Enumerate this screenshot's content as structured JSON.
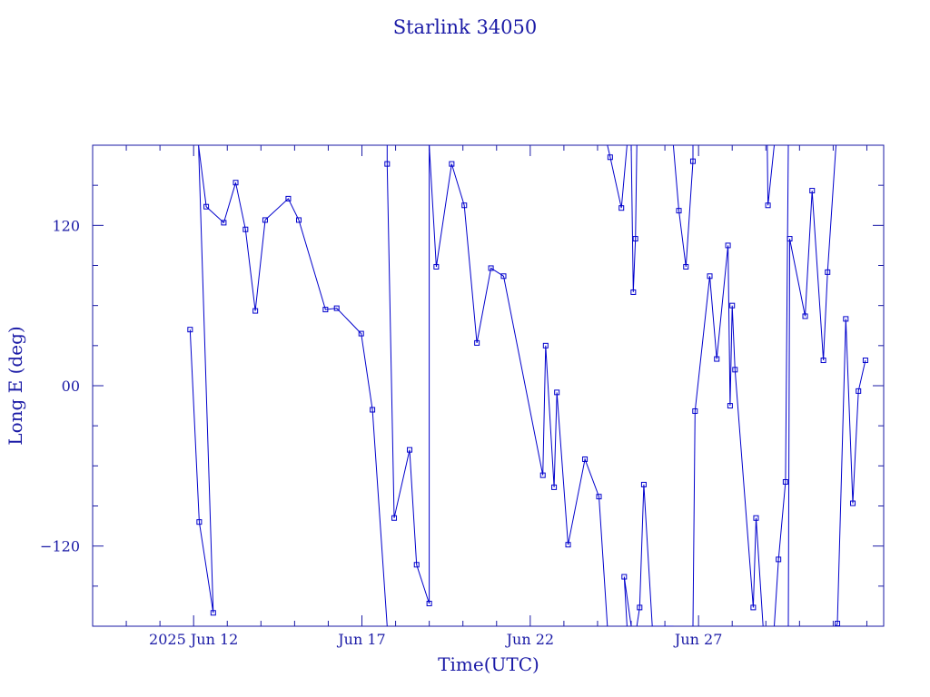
{
  "chart_data": {
    "type": "line",
    "title": "Starlink 34050",
    "xlabel": "Time(UTC)",
    "ylabel": "Long E (deg)",
    "x_ticks": [
      {
        "date": "2025-06-12",
        "label": "2025 Jun 12"
      },
      {
        "date": "2025-06-17",
        "label": "Jun 17"
      },
      {
        "date": "2025-06-22",
        "label": "Jun 22"
      },
      {
        "date": "2025-06-27",
        "label": "Jun 27"
      }
    ],
    "y_ticks": [
      {
        "value": 120,
        "label": "120"
      },
      {
        "value": 0,
        "label": "00"
      },
      {
        "value": -120,
        "label": "−120"
      }
    ],
    "xlim": [
      "2025-06-09T00:00",
      "2025-07-02T12:00"
    ],
    "ylim": [
      -180,
      180
    ],
    "grid": false,
    "color": "#0000cc",
    "series": [
      {
        "points": [
          [
            "2025-06-11T21:30",
            42
          ],
          [
            "2025-06-12T04:00",
            -102
          ],
          [
            "2025-06-12T14:00",
            -170
          ],
          [
            "2025-06-12T03:30",
            180
          ],
          [
            "2025-06-12T09:00",
            134
          ],
          [
            "2025-06-12T21:30",
            122
          ],
          [
            "2025-06-13T06:00",
            152
          ],
          [
            "2025-06-13T13:00",
            117
          ],
          [
            "2025-06-13T20:00",
            56
          ],
          [
            "2025-06-14T03:00",
            124
          ],
          [
            "2025-06-14T19:30",
            140
          ],
          [
            "2025-06-15T03:00",
            124
          ],
          [
            "2025-06-15T22:00",
            57
          ],
          [
            "2025-06-16T06:00",
            58
          ],
          [
            "2025-06-16T23:30",
            39
          ],
          [
            "2025-06-17T07:30",
            -18
          ],
          [
            "2025-06-17T18:00",
            -180
          ],
          [
            "2025-06-17T18:00",
            180
          ],
          [
            "2025-06-17T18:00",
            166
          ],
          [
            "2025-06-17T23:00",
            -99
          ],
          [
            "2025-06-18T10:00",
            -48
          ],
          [
            "2025-06-18T15:00",
            -134
          ],
          [
            "2025-06-19T00:00",
            -163
          ],
          [
            "2025-06-19T00:00",
            180
          ],
          [
            "2025-06-19T05:00",
            89
          ],
          [
            "2025-06-19T16:00",
            166
          ],
          [
            "2025-06-20T01:00",
            135
          ],
          [
            "2025-06-20T10:00",
            32
          ],
          [
            "2025-06-20T20:00",
            88
          ],
          [
            "2025-06-21T05:00",
            82
          ],
          [
            "2025-06-22T09:00",
            -67
          ],
          [
            "2025-06-22T11:00",
            30
          ],
          [
            "2025-06-22T17:00",
            -76
          ],
          [
            "2025-06-22T19:00",
            -5
          ],
          [
            "2025-06-23T03:00",
            -119
          ],
          [
            "2025-06-23T15:00",
            -55
          ],
          [
            "2025-06-24T01:00",
            -83
          ],
          [
            "2025-06-24T07:00",
            -180
          ],
          [
            "2025-06-24T07:00",
            180
          ],
          [
            "2025-06-24T09:00",
            171
          ],
          [
            "2025-06-24T17:00",
            133
          ],
          [
            "2025-06-24T21:00",
            180
          ],
          [
            "2025-06-24T21:00",
            -180
          ],
          [
            "2025-06-24T19:00",
            -143
          ],
          [
            "2025-06-25T00:00",
            -180
          ],
          [
            "2025-06-25T00:00",
            180
          ],
          [
            "2025-06-25T01:30",
            70
          ],
          [
            "2025-06-25T03:00",
            110
          ],
          [
            "2025-06-25T04:00",
            180
          ],
          [
            "2025-06-25T04:00",
            -180
          ],
          [
            "2025-06-25T06:00",
            -166
          ],
          [
            "2025-06-25T09:00",
            -74
          ],
          [
            "2025-06-25T15:00",
            -180
          ],
          [
            "2025-06-26T06:00",
            -180
          ],
          [
            "2025-06-26T06:00",
            180
          ],
          [
            "2025-06-26T10:00",
            131
          ],
          [
            "2025-06-26T15:00",
            89
          ],
          [
            "2025-06-26T20:00",
            168
          ],
          [
            "2025-06-26T20:00",
            180
          ],
          [
            "2025-06-26T20:00",
            -180
          ],
          [
            "2025-06-26T21:30",
            -19
          ],
          [
            "2025-06-27T08:00",
            82
          ],
          [
            "2025-06-27T13:00",
            20
          ],
          [
            "2025-06-27T21:00",
            105
          ],
          [
            "2025-06-27T22:30",
            -15
          ],
          [
            "2025-06-28T00:00",
            60
          ],
          [
            "2025-06-28T02:00",
            12
          ],
          [
            "2025-06-28T15:00",
            -166
          ],
          [
            "2025-06-28T17:00",
            -99
          ],
          [
            "2025-06-28T22:00",
            -180
          ],
          [
            "2025-06-29T01:00",
            180
          ],
          [
            "2025-06-29T01:30",
            135
          ],
          [
            "2025-06-29T06:00",
            180
          ],
          [
            "2025-06-29T06:00",
            -180
          ],
          [
            "2025-06-29T09:00",
            -130
          ],
          [
            "2025-06-29T14:00",
            -72
          ],
          [
            "2025-06-29T16:00",
            180
          ],
          [
            "2025-06-29T16:00",
            -180
          ],
          [
            "2025-06-29T17:00",
            110
          ],
          [
            "2025-06-30T04:00",
            52
          ],
          [
            "2025-06-30T09:00",
            146
          ],
          [
            "2025-06-30T17:00",
            19
          ],
          [
            "2025-06-30T20:00",
            85
          ],
          [
            "2025-07-01T02:00",
            180
          ],
          [
            "2025-07-01T02:00",
            -180
          ],
          [
            "2025-07-01T03:00",
            -178
          ],
          [
            "2025-07-01T09:00",
            50
          ],
          [
            "2025-07-01T14:00",
            -88
          ],
          [
            "2025-07-01T18:00",
            -4
          ],
          [
            "2025-07-01T23:00",
            19
          ]
        ]
      }
    ]
  }
}
